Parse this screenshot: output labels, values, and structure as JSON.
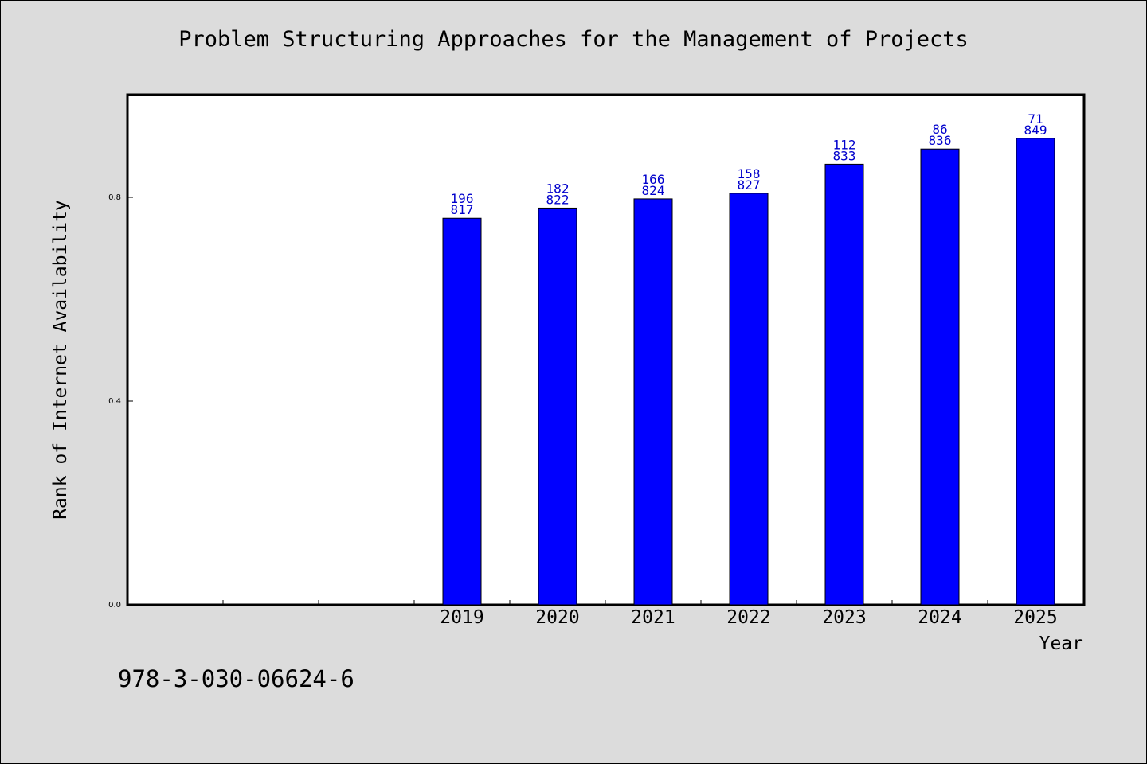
{
  "title": "Problem Structuring Approaches for the Management of Projects",
  "footer_text": "978-3-030-06624-6",
  "chart_data": {
    "type": "bar",
    "title": "Problem Structuring Approaches for the Management of Projects",
    "xlabel": "Year",
    "ylabel": "Rank of Internet Availability",
    "categories": [
      "2019",
      "2020",
      "2021",
      "2022",
      "2023",
      "2024",
      "2025"
    ],
    "values": [
      0.759,
      0.779,
      0.797,
      0.808,
      0.865,
      0.895,
      0.916
    ],
    "bar_label_top": [
      "196",
      "182",
      "166",
      "158",
      "112",
      "86",
      "71"
    ],
    "bar_label_bottom": [
      "817",
      "822",
      "824",
      "827",
      "833",
      "836",
      "849"
    ],
    "yticks": [
      0.0,
      0.4,
      0.8
    ],
    "ytick_labels": [
      "0.0",
      "0.4",
      "0.8"
    ],
    "ylim": [
      0,
      1.0
    ],
    "bar_color": "#0000ff",
    "label_color": "#0000cc",
    "grid": false,
    "legend": "none"
  }
}
